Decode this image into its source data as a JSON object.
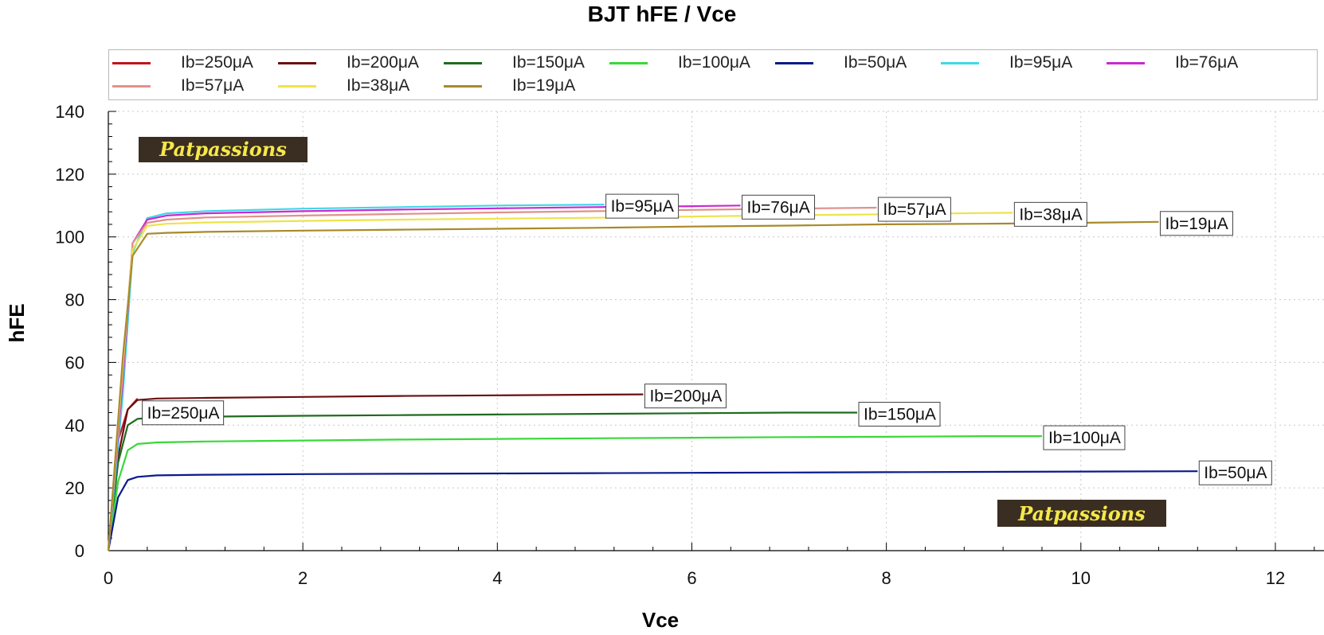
{
  "chart_data": {
    "type": "line",
    "title": "BJT hFE / Vce",
    "xlabel": "Vce",
    "ylabel": "hFE",
    "xlim": [
      0,
      12.5
    ],
    "ylim": [
      0,
      140
    ],
    "xticks": [
      0,
      2,
      4,
      6,
      8,
      10,
      12
    ],
    "yticks": [
      0,
      20,
      40,
      60,
      80,
      100,
      120,
      140
    ],
    "grid": true,
    "legend_position": "top",
    "series": [
      {
        "name": "Ib=250μA",
        "color": "#c0141c",
        "x": [
          0,
          0.1,
          0.2,
          0.3
        ],
        "y": [
          0,
          35,
          45,
          48.5
        ],
        "label": "Ib=250μA",
        "label_anchor": "start"
      },
      {
        "name": "Ib=200μA",
        "color": "#6b0f10",
        "x": [
          0,
          0.1,
          0.2,
          0.3,
          0.5,
          1,
          2,
          3,
          4,
          5,
          5.5
        ],
        "y": [
          0,
          30,
          45,
          48,
          48.5,
          48.7,
          49,
          49.3,
          49.5,
          49.7,
          49.8
        ],
        "label": "Ib=200μA",
        "label_anchor": "end"
      },
      {
        "name": "Ib=150μA",
        "color": "#1e6b1e",
        "x": [
          0,
          0.1,
          0.2,
          0.3,
          0.5,
          1,
          2,
          3,
          4,
          5,
          6,
          7,
          7.7
        ],
        "y": [
          0,
          28,
          40,
          42,
          42.5,
          42.7,
          43,
          43.2,
          43.4,
          43.6,
          43.8,
          44,
          44
        ],
        "label": "Ib=150μA",
        "label_anchor": "end"
      },
      {
        "name": "Ib=100μA",
        "color": "#3ad83a",
        "x": [
          0,
          0.1,
          0.2,
          0.3,
          0.5,
          1,
          2,
          3,
          4,
          5,
          6,
          7,
          8,
          9,
          9.6
        ],
        "y": [
          0,
          22,
          32,
          34,
          34.5,
          34.8,
          35.1,
          35.4,
          35.6,
          35.8,
          36,
          36.2,
          36.3,
          36.5,
          36.5
        ],
        "label": "Ib=100μA",
        "label_anchor": "end"
      },
      {
        "name": "Ib=50μA",
        "color": "#0a1a8a",
        "x": [
          0,
          0.1,
          0.2,
          0.3,
          0.5,
          1,
          2,
          3,
          4,
          5,
          6,
          7,
          8,
          9,
          10,
          11.2
        ],
        "y": [
          0,
          17,
          22.5,
          23.5,
          24,
          24.2,
          24.4,
          24.5,
          24.6,
          24.7,
          24.8,
          24.9,
          25,
          25.1,
          25.2,
          25.3
        ],
        "label": "Ib=50μA",
        "label_anchor": "end"
      },
      {
        "name": "Ib=95μA",
        "color": "#40d8e8",
        "x": [
          0,
          0.15,
          0.25,
          0.4,
          0.6,
          1,
          2,
          3,
          4,
          5.1
        ],
        "y": [
          0,
          50,
          95,
          106,
          107.5,
          108.2,
          109,
          109.5,
          110,
          110.3
        ],
        "label": "Ib=95μA",
        "label_anchor": "end"
      },
      {
        "name": "Ib=76μA",
        "color": "#c92ad2",
        "x": [
          0,
          0.15,
          0.25,
          0.4,
          0.6,
          1,
          2,
          3,
          4,
          5,
          6,
          6.5
        ],
        "y": [
          0,
          55,
          98,
          105.5,
          106.8,
          107.5,
          108.2,
          108.7,
          109.1,
          109.5,
          109.8,
          110
        ],
        "label": "Ib=76μA",
        "label_anchor": "end"
      },
      {
        "name": "Ib=57μA",
        "color": "#e0918a",
        "x": [
          0,
          0.15,
          0.25,
          0.4,
          0.6,
          1,
          2,
          3,
          4,
          5,
          6,
          7,
          7.9
        ],
        "y": [
          0,
          58,
          98,
          104.5,
          105.5,
          106.2,
          106.8,
          107.3,
          107.8,
          108.2,
          108.6,
          109,
          109.3
        ],
        "label": "Ib=57μA",
        "label_anchor": "end"
      },
      {
        "name": "Ib=38μA",
        "color": "#ede34a",
        "x": [
          0,
          0.15,
          0.25,
          0.4,
          0.6,
          1,
          2,
          3,
          4,
          5,
          6,
          7,
          8,
          9,
          9.3
        ],
        "y": [
          0,
          60,
          96,
          103.5,
          104.2,
          104.6,
          105.1,
          105.5,
          105.8,
          106.1,
          106.5,
          106.9,
          107.2,
          107.6,
          107.7
        ],
        "label": "Ib=38μA",
        "label_anchor": "end"
      },
      {
        "name": "Ib=19μA",
        "color": "#a88a2a",
        "x": [
          0,
          0.15,
          0.25,
          0.4,
          0.6,
          1,
          2,
          3,
          4,
          5,
          6,
          7,
          8,
          9,
          10,
          10.8
        ],
        "y": [
          0,
          62,
          94,
          101,
          101.3,
          101.6,
          102,
          102.3,
          102.6,
          102.9,
          103.3,
          103.6,
          104,
          104.2,
          104.5,
          104.8
        ],
        "label": "Ib=19μA",
        "label_anchor": "end"
      }
    ],
    "legend_order": [
      "Ib=250μA",
      "Ib=200μA",
      "Ib=150μA",
      "Ib=100μA",
      "Ib=50μA",
      "Ib=95μA",
      "Ib=76μA",
      "Ib=57μA",
      "Ib=38μA",
      "Ib=19μA"
    ]
  },
  "watermarks": [
    "Patpassions",
    "Patpassions"
  ]
}
